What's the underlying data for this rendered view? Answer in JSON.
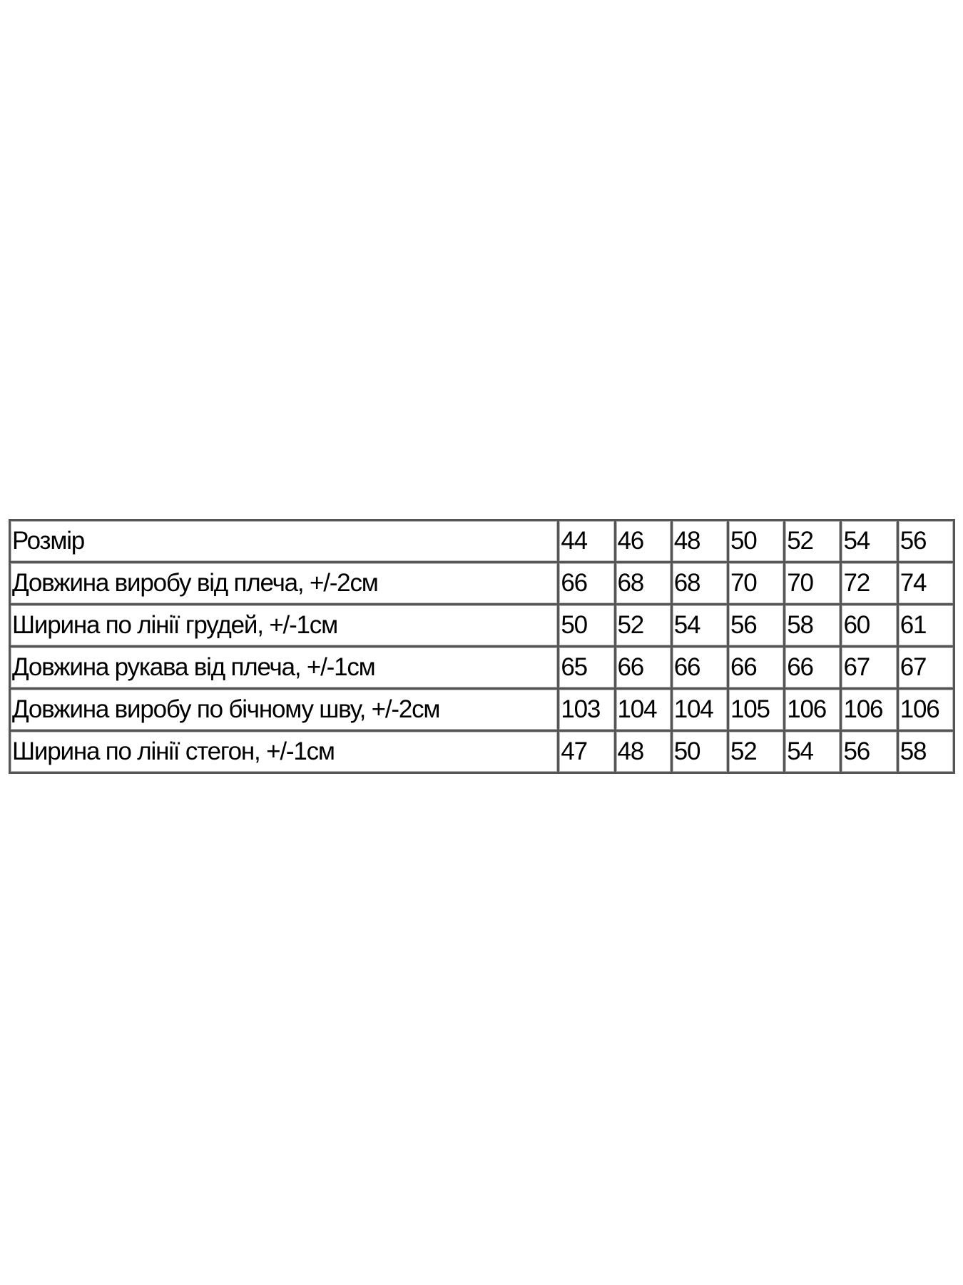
{
  "table": {
    "header": {
      "label": "Розмір",
      "sizes": [
        "44",
        "46",
        "48",
        "50",
        "52",
        "54",
        "56"
      ]
    },
    "rows": [
      {
        "label": "Довжина виробу від плеча, +/-2см",
        "values": [
          "66",
          "68",
          "68",
          "70",
          "70",
          "72",
          "74"
        ]
      },
      {
        "label": "Ширина по лінії грудей, +/-1см",
        "values": [
          "50",
          "52",
          "54",
          "56",
          "58",
          "60",
          "61"
        ]
      },
      {
        "label": "Довжина рукава від плеча, +/-1см",
        "values": [
          "65",
          "66",
          "66",
          "66",
          "66",
          "67",
          "67"
        ]
      },
      {
        "label": "Довжина виробу по бічному шву, +/-2см",
        "values": [
          "103",
          "104",
          "104",
          "105",
          "106",
          "106",
          "106"
        ]
      },
      {
        "label": "Ширина по лінії стегон, +/-1см",
        "values": [
          "47",
          "48",
          "50",
          "52",
          "54",
          "56",
          "58"
        ]
      }
    ]
  }
}
